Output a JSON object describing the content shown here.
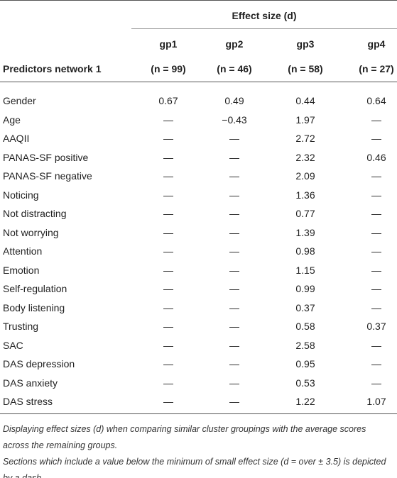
{
  "table": {
    "header": {
      "title": "Effect size (d)",
      "row_label": "Predictors network 1",
      "groups": [
        "gp1",
        "gp2",
        "gp3",
        "gp4"
      ],
      "counts": [
        "(n = 99)",
        "(n = 46)",
        "(n = 58)",
        "(n = 27)"
      ]
    },
    "rows": [
      [
        "Gender",
        "0.67",
        "0.49",
        "0.44",
        "0.64"
      ],
      [
        "Age",
        "—",
        "−0.43",
        "1.97",
        "—"
      ],
      [
        "AAQII",
        "—",
        "—",
        "2.72",
        "—"
      ],
      [
        "PANAS-SF positive",
        "—",
        "—",
        "2.32",
        "0.46"
      ],
      [
        "PANAS-SF negative",
        "—",
        "—",
        "2.09",
        "—"
      ],
      [
        "Noticing",
        "—",
        "—",
        "1.36",
        "—"
      ],
      [
        "Not distracting",
        "—",
        "—",
        "0.77",
        "—"
      ],
      [
        "Not worrying",
        "—",
        "—",
        "1.39",
        "—"
      ],
      [
        "Attention",
        "—",
        "—",
        "0.98",
        "—"
      ],
      [
        "Emotion",
        "—",
        "—",
        "1.15",
        "—"
      ],
      [
        "Self-regulation",
        "—",
        "—",
        "0.99",
        "—"
      ],
      [
        "Body listening",
        "—",
        "—",
        "0.37",
        "—"
      ],
      [
        "Trusting",
        "—",
        "—",
        "0.58",
        "0.37"
      ],
      [
        "SAC",
        "—",
        "—",
        "2.58",
        "—"
      ],
      [
        "DAS depression",
        "—",
        "—",
        "0.95",
        "—"
      ],
      [
        "DAS anxiety",
        "—",
        "—",
        "0.53",
        "—"
      ],
      [
        "DAS stress",
        "—",
        "—",
        "1.22",
        "1.07"
      ]
    ],
    "notes": [
      "Displaying effect sizes (d) when comparing similar cluster groupings with the average scores across the remaining groups.",
      "Sections which include a value below the minimum of small effect size (d = over ± 3.5) is depicted by a dash."
    ]
  }
}
